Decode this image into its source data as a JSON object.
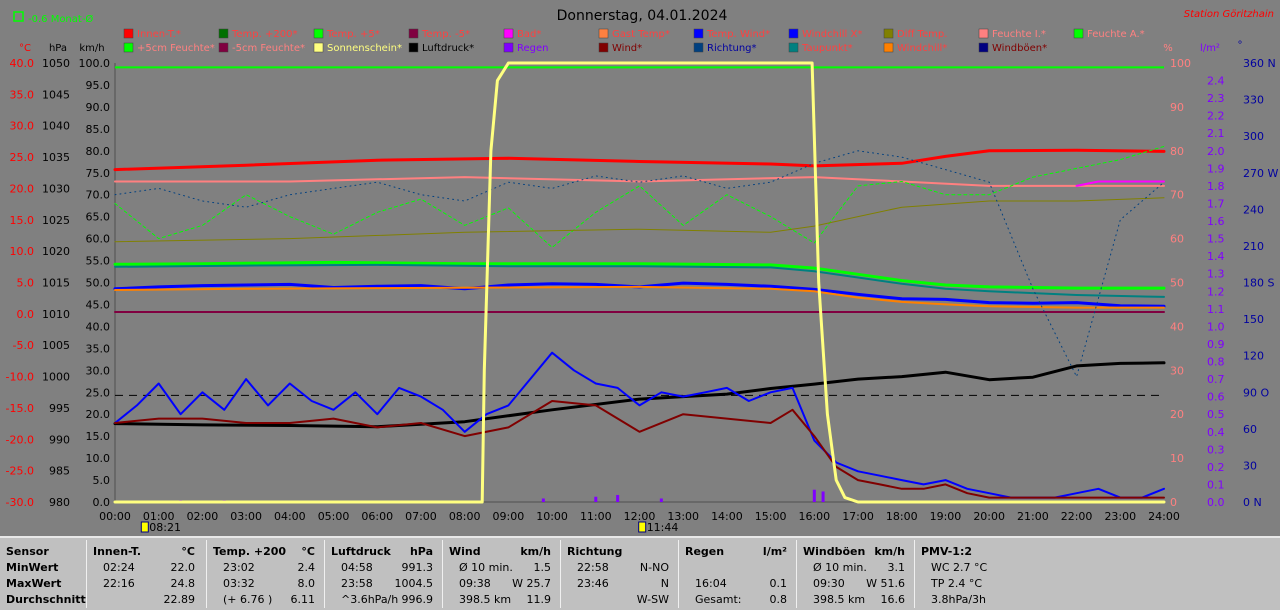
{
  "title": "Donnerstag, 04.01.2024",
  "station": "Station Göritzhain",
  "indicator": {
    "label": "-0.6 Monat-Ø",
    "color": "#00ff00"
  },
  "unit_headers": {
    "temp": "°C",
    "pressure": "hPa",
    "speed": "km/h",
    "percent": "%",
    "rain": "l/m²",
    "direction": "°"
  },
  "legend": [
    {
      "label": "Innen-T.*",
      "color": "#ff0000",
      "text_color": "#ff4040"
    },
    {
      "label": "Temp. +200*",
      "color": "#007000",
      "text_color": "#ff4040"
    },
    {
      "label": "Temp. +5*",
      "color": "#00ff00",
      "text_color": "#ff4040"
    },
    {
      "label": "Temp. -5*",
      "color": "#800040",
      "text_color": "#ff4040"
    },
    {
      "label": "Bad*",
      "color": "#ff00ff",
      "text_color": "#ff4040"
    },
    {
      "label": "Gast Temp*",
      "color": "#ff8040",
      "text_color": "#ff4040"
    },
    {
      "label": "Temp. Wind*",
      "color": "#0000ff",
      "text_color": "#ff4040"
    },
    {
      "label": "Windchill X*",
      "color": "#0000ff",
      "text_color": "#ff4040"
    },
    {
      "label": "Diff Temp.",
      "color": "#808000",
      "text_color": "#ff4040"
    },
    {
      "label": "Feuchte I.*",
      "color": "#ff8080",
      "text_color": "#ff8080"
    },
    {
      "label": "Feuchte A.*",
      "color": "#00ff00",
      "text_color": "#ff8080"
    },
    {
      "label": "+5cm Feuchte*",
      "color": "#00ff00",
      "text_color": "#ff8080"
    },
    {
      "label": "-5cm Feuchte*",
      "color": "#800040",
      "text_color": "#ff8080"
    },
    {
      "label": "Sonnenschein*",
      "color": "#ffff80",
      "text_color": "#ffff80"
    },
    {
      "label": "Luftdruck*",
      "color": "#000000",
      "text_color": "#000000"
    },
    {
      "label": "Regen",
      "color": "#8000ff",
      "text_color": "#8000ff"
    },
    {
      "label": "Wind*",
      "color": "#800000",
      "text_color": "#800000"
    },
    {
      "label": "Richtung*",
      "color": "#004080",
      "text_color": "#0000a0"
    },
    {
      "label": "Taupunkt*",
      "color": "#008080",
      "text_color": "#ff4040"
    },
    {
      "label": "Windchill*",
      "color": "#ff8000",
      "text_color": "#ff4040"
    },
    {
      "label": "Windböen*",
      "color": "#000080",
      "text_color": "#800000"
    }
  ],
  "chart_data": {
    "type": "line",
    "title": "Donnerstag, 04.01.2024",
    "x_ticks": [
      "00:00",
      "01:00",
      "02:00",
      "03:00",
      "04:00",
      "05:00",
      "06:00",
      "07:00",
      "08:00",
      "09:00",
      "10:00",
      "11:00",
      "12:00",
      "13:00",
      "14:00",
      "15:00",
      "16:00",
      "17:00",
      "18:00",
      "19:00",
      "20:00",
      "21:00",
      "22:00",
      "23:00",
      "24:00"
    ],
    "xlim_hours": [
      0,
      24
    ],
    "markers": [
      {
        "label": "08:21",
        "hour": 0.35
      },
      {
        "label": "11:44",
        "hour": 11.73
      }
    ],
    "y_axes": {
      "temp": {
        "unit": "°C",
        "range": [
          -30,
          40
        ],
        "ticks": [
          "40.0",
          "35.0",
          "30.0",
          "25.0",
          "20.0",
          "15.0",
          "10.0",
          "5.0",
          "0.0",
          "-5.0",
          "-10.0",
          "-15.0",
          "-20.0",
          "-25.0",
          "-30.0"
        ]
      },
      "pressure": {
        "unit": "hPa",
        "range": [
          980,
          1050
        ],
        "ticks": [
          "1050",
          "1045",
          "1040",
          "1035",
          "1030",
          "1025",
          "1020",
          "1015",
          "1010",
          "1005",
          "1000",
          "995",
          "990",
          "985",
          "980"
        ]
      },
      "speed": {
        "unit": "km/h",
        "range": [
          0,
          100
        ],
        "ticks": [
          "100.0",
          "95.0",
          "90.0",
          "85.0",
          "80.0",
          "75.0",
          "70.0",
          "65.0",
          "60.0",
          "55.0",
          "50.0",
          "45.0",
          "40.0",
          "35.0",
          "30.0",
          "25.0",
          "20.0",
          "15.0",
          "10.0",
          "5.0",
          "0.0"
        ]
      },
      "percent": {
        "unit": "%",
        "range": [
          0,
          100
        ],
        "ticks": [
          "100",
          "90",
          "80",
          "70",
          "60",
          "50",
          "40",
          "30",
          "20",
          "10",
          "0"
        ]
      },
      "rain": {
        "unit": "l/m²",
        "range": [
          0,
          2.5
        ],
        "ticks": [
          "2.4",
          "2.3",
          "2.2",
          "2.1",
          "2.0",
          "1.9",
          "1.8",
          "1.7",
          "1.6",
          "1.5",
          "1.4",
          "1.3",
          "1.2",
          "1.1",
          "1.0",
          "0.9",
          "0.8",
          "0.7",
          "0.6",
          "0.5",
          "0.4",
          "0.3",
          "0.2",
          "0.1",
          "0.0"
        ]
      },
      "direction": {
        "unit": "°",
        "range": [
          0,
          360
        ],
        "ticks": [
          "360 N",
          "330",
          "300",
          "270 W",
          "240",
          "210",
          "180 S",
          "150",
          "120",
          "90 O",
          "60",
          "30",
          "0 N"
        ]
      }
    },
    "series": [
      {
        "name": "Innen-T.*",
        "axis": "temp",
        "color": "#ff0000",
        "width": 3,
        "x": [
          0,
          3,
          6,
          9,
          12,
          15,
          16,
          18,
          19,
          20,
          22,
          24
        ],
        "y": [
          23.0,
          23.7,
          24.5,
          24.8,
          24.3,
          23.9,
          23.6,
          24.0,
          25.1,
          26.0,
          26.1,
          25.9
        ]
      },
      {
        "name": "Feuchte I.*",
        "axis": "percent",
        "color": "#ff8080",
        "width": 2,
        "x": [
          0,
          4,
          8,
          12,
          16,
          18,
          20,
          22,
          24
        ],
        "y": [
          73,
          73,
          74,
          73,
          74,
          73,
          72,
          72,
          72
        ]
      },
      {
        "name": "Bad*",
        "axis": "percent",
        "color": "#ff00ff",
        "width": 2,
        "x": [
          22,
          22.5,
          24
        ],
        "y": [
          72,
          73,
          73
        ]
      },
      {
        "name": "Temp. +5*",
        "axis": "temp",
        "color": "#00ff00",
        "width": 3,
        "x": [
          0,
          2,
          5,
          8,
          12,
          15,
          16,
          17,
          18,
          19,
          20,
          22,
          24
        ],
        "y": [
          7.9,
          8.0,
          8.2,
          8.0,
          8.0,
          7.8,
          7.3,
          6.3,
          5.3,
          4.6,
          4.3,
          4.1,
          4.1
        ]
      },
      {
        "name": "Taupunkt*",
        "axis": "temp",
        "color": "#008080",
        "width": 2,
        "x": [
          0,
          3,
          6,
          9,
          12,
          15,
          16,
          17,
          18,
          19,
          20,
          22,
          24
        ],
        "y": [
          7.5,
          7.7,
          7.8,
          7.6,
          7.6,
          7.4,
          6.8,
          5.8,
          4.8,
          4.0,
          3.6,
          3.0,
          2.7
        ]
      },
      {
        "name": "Temp. Wind*",
        "axis": "temp",
        "color": "#0000ff",
        "width": 3,
        "x": [
          0,
          1,
          2,
          3,
          4,
          5,
          6,
          7,
          8,
          9,
          10,
          11,
          12,
          13,
          14,
          15,
          16,
          17,
          18,
          19,
          20,
          21,
          22,
          23,
          24
        ],
        "y": [
          4.0,
          4.3,
          4.5,
          4.6,
          4.7,
          4.2,
          4.4,
          4.5,
          4.0,
          4.6,
          4.8,
          4.7,
          4.3,
          4.9,
          4.7,
          4.4,
          3.9,
          3.1,
          2.4,
          2.3,
          1.8,
          1.7,
          1.8,
          1.3,
          1.2
        ]
      },
      {
        "name": "Windchill*",
        "axis": "temp",
        "color": "#ff8000",
        "width": 2,
        "x": [
          0,
          3,
          6,
          9,
          12,
          15,
          16,
          17,
          18,
          19,
          20,
          22,
          24
        ],
        "y": [
          3.8,
          4.0,
          4.1,
          4.2,
          4.3,
          4.0,
          3.6,
          2.6,
          1.9,
          1.5,
          1.2,
          1.0,
          1.0
        ]
      },
      {
        "name": "Temp. -5*",
        "axis": "temp",
        "color": "#800040",
        "width": 2,
        "x": [
          0,
          24
        ],
        "y": [
          0.3,
          0.3
        ]
      },
      {
        "name": "Feuchte A.*",
        "axis": "percent",
        "color": "#00ff00",
        "width": 1,
        "dash": "3,3",
        "x": [
          0,
          1,
          2,
          3,
          4,
          5,
          6,
          7,
          8,
          9,
          10,
          11,
          12,
          13,
          14,
          15,
          16,
          17,
          18,
          19,
          20,
          21,
          22,
          23,
          24
        ],
        "y": [
          68,
          60,
          63,
          70,
          65,
          61,
          66,
          69,
          63,
          67,
          58,
          66,
          72,
          63,
          70,
          65,
          59,
          72,
          73,
          70,
          70,
          74,
          76,
          78,
          81
        ]
      },
      {
        "name": "Diff Temp.",
        "axis": "temp",
        "color": "#808000",
        "width": 1,
        "x": [
          0,
          4,
          8,
          12,
          15,
          16,
          17,
          18,
          19,
          20,
          22,
          24
        ],
        "y": [
          11.5,
          12.0,
          13.0,
          13.5,
          13.0,
          14.0,
          15.5,
          17.0,
          17.5,
          18.0,
          18.0,
          18.5
        ]
      },
      {
        "name": "Richtung*",
        "axis": "temp",
        "color": "#004080",
        "width": 1,
        "dash": "1,4",
        "x": [
          0,
          1,
          2,
          3,
          4,
          5,
          6,
          7,
          8,
          9,
          10,
          11,
          12,
          13,
          14,
          15,
          16,
          17,
          18,
          19,
          20,
          21,
          22,
          23,
          24
        ],
        "y": [
          19,
          20,
          18,
          17,
          19,
          20,
          21,
          19,
          18,
          21,
          20,
          22,
          21,
          22,
          20,
          21,
          24,
          26,
          25,
          23,
          21,
          4,
          -10,
          15,
          21
        ]
      },
      {
        "name": "Luftdruck*",
        "axis": "pressure",
        "color": "#000000",
        "width": 3,
        "x": [
          0,
          2,
          4,
          6,
          8,
          10,
          12,
          14,
          15,
          16,
          17,
          18,
          19,
          20,
          21,
          22,
          23,
          24
        ],
        "y": [
          992.5,
          992.3,
          992.2,
          992.0,
          992.8,
          994.7,
          996.4,
          997.2,
          998.1,
          998.8,
          999.6,
          1000.0,
          1000.7,
          999.5,
          999.9,
          1001.7,
          1002.1,
          1002.2
        ]
      },
      {
        "name": "Windböen*",
        "axis": "speed",
        "color": "#0000ff",
        "width": 2,
        "x": [
          0,
          0.5,
          1,
          1.5,
          2,
          2.5,
          3,
          3.5,
          4,
          4.5,
          5,
          5.5,
          6,
          6.5,
          7,
          7.5,
          8,
          8.5,
          9,
          9.5,
          10,
          10.5,
          11,
          11.5,
          12,
          12.5,
          13,
          13.5,
          14,
          14.5,
          15,
          15.5,
          16,
          16.5,
          17,
          17.5,
          18,
          18.5,
          19,
          19.5,
          20,
          20.5,
          21,
          21.5,
          22,
          22.5,
          23,
          23.5,
          24
        ],
        "y": [
          18,
          22,
          27,
          20,
          25,
          21,
          28,
          22,
          27,
          23,
          21,
          25,
          20,
          26,
          24,
          21,
          16,
          20,
          22,
          28,
          34,
          30,
          27,
          26,
          22,
          25,
          24,
          25,
          26,
          23,
          25,
          26,
          14,
          9,
          7,
          6,
          5,
          4,
          5,
          3,
          2,
          1,
          1,
          1,
          2,
          3,
          1,
          1,
          3
        ]
      },
      {
        "name": "Wind*",
        "axis": "speed",
        "color": "#800000",
        "width": 2,
        "x": [
          0,
          1,
          2,
          3,
          4,
          5,
          6,
          7,
          8,
          9,
          10,
          11,
          12,
          13,
          14,
          15,
          15.5,
          16,
          16.5,
          17,
          17.5,
          18,
          18.5,
          19,
          19.5,
          20,
          21,
          22,
          23,
          24
        ],
        "y": [
          18,
          19,
          19,
          18,
          18,
          19,
          17,
          18,
          15,
          17,
          23,
          22,
          16,
          20,
          19,
          18,
          21,
          15,
          8,
          5,
          4,
          3,
          3,
          4,
          2,
          1,
          1,
          1,
          1,
          1
        ]
      },
      {
        "name": "Sonnenschein*",
        "axis": "percent",
        "color": "#ffff80",
        "width": 3,
        "x": [
          0,
          8.4,
          8.45,
          8.6,
          8.75,
          9.0,
          9.2,
          15.95,
          16.1,
          16.3,
          16.5,
          16.7,
          17,
          24
        ],
        "y": [
          0,
          0,
          30,
          80,
          96,
          100,
          100,
          100,
          50,
          20,
          5,
          1,
          0,
          0
        ]
      }
    ],
    "reference_lines": [
      {
        "name": "Feuchte A. reference",
        "axis": "speed",
        "value": 99,
        "color": "#00ff00"
      },
      {
        "name": "Luftdruck reference",
        "axis": "pressure",
        "value": 997,
        "color": "#000000",
        "dash": true
      }
    ],
    "rain_bars": [
      {
        "hour": 1.5,
        "value": 0.01
      },
      {
        "hour": 2.5,
        "value": 0.01
      },
      {
        "hour": 9.8,
        "value": 0.02
      },
      {
        "hour": 11.0,
        "value": 0.03
      },
      {
        "hour": 11.5,
        "value": 0.04
      },
      {
        "hour": 12.5,
        "value": 0.02
      },
      {
        "hour": 16.0,
        "value": 0.07
      },
      {
        "hour": 16.2,
        "value": 0.06
      }
    ]
  },
  "stats": {
    "labels": {
      "header": "Sensor",
      "min": "MinWert",
      "max": "MaxWert",
      "avg": "Durchschnitt"
    },
    "columns": [
      {
        "title": "Innen-T.",
        "unit": "°C",
        "min": [
          "02:24",
          "22.0"
        ],
        "max": [
          "22:16",
          "24.8"
        ],
        "avg": [
          "",
          "22.89"
        ]
      },
      {
        "title": "Temp. +200",
        "unit": "°C",
        "min": [
          "23:02",
          "2.4"
        ],
        "max": [
          "03:32",
          "8.0"
        ],
        "avg": [
          "(+ 6.76 )",
          "6.11"
        ]
      },
      {
        "title": "Luftdruck",
        "unit": "hPa",
        "min": [
          "04:58",
          "991.3"
        ],
        "max": [
          "23:58",
          "1004.5"
        ],
        "avg": [
          "^3.6hPa/h",
          "996.9"
        ]
      },
      {
        "title": "Wind",
        "unit": "km/h",
        "min": [
          "Ø 10 min.",
          "1.5"
        ],
        "max": [
          "09:38",
          "W 25.7"
        ],
        "avg": [
          "398.5 km",
          "11.9"
        ]
      },
      {
        "title": "Richtung",
        "unit": "",
        "min": [
          "22:58",
          "N-NO"
        ],
        "max": [
          "23:46",
          "N"
        ],
        "avg": [
          "",
          "W-SW"
        ]
      },
      {
        "title": "Regen",
        "unit": "l/m²",
        "min": [
          "",
          ""
        ],
        "max": [
          "16:04",
          "0.1"
        ],
        "avg": [
          "Gesamt:",
          "0.8"
        ]
      },
      {
        "title": "Windböen",
        "unit": "km/h",
        "min": [
          "Ø 10 min.",
          "3.1"
        ],
        "max": [
          "09:30",
          "W 51.6"
        ],
        "avg": [
          "398.5 km",
          "16.6"
        ]
      },
      {
        "title": "PMV-1:2",
        "unit": "",
        "min": [
          "WC 2.7 °C",
          ""
        ],
        "max": [
          "TP 2.4 °C",
          ""
        ],
        "avg": [
          "3.8hPa/3h",
          ""
        ]
      }
    ]
  }
}
